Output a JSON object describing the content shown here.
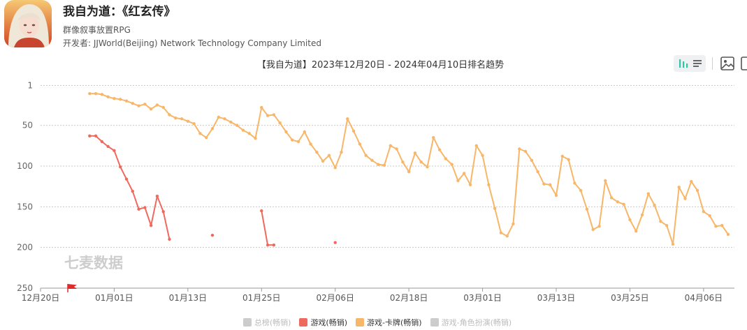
{
  "header": {
    "title": "我自为道：《红玄传》",
    "subtitle": "群像叙事放置RPG",
    "developer": "开发者: JJWorld(Beijing) Network Technology Company Limited"
  },
  "toolbar": {
    "icons": [
      "bar-chart-icon",
      "list-icon",
      "image-icon",
      "copy-icon"
    ]
  },
  "watermark": "七麦数据",
  "chart_data": {
    "type": "line",
    "title": "【我自为道】2023年12月20日 - 2024年04月10日排名趋势",
    "y_axis": {
      "inverted": true,
      "range": [
        1,
        250
      ],
      "ticks": [
        "1",
        "50",
        "100",
        "150",
        "200",
        "250"
      ]
    },
    "x_axis": {
      "range": [
        "2023-12-20",
        "2024-04-10"
      ],
      "ticks": [
        "12月20日",
        "01月01日",
        "01月13日",
        "01月25日",
        "02月06日",
        "02月18日",
        "03月01日",
        "03月13日",
        "03月25日",
        "04月06日"
      ]
    },
    "grid": true,
    "legend": "bottom-center",
    "legend_items": [
      {
        "name": "总榜(畅销)",
        "color": "#cccccc",
        "active": false
      },
      {
        "name": "游戏(畅销)",
        "color": "#ee6a5f",
        "active": true
      },
      {
        "name": "游戏-卡牌(畅销)",
        "color": "#f8b668",
        "active": true
      },
      {
        "name": "游戏-角色扮演(畅销)",
        "color": "#cccccc",
        "active": false
      }
    ],
    "series": [
      {
        "name": "游戏-卡牌(畅销)",
        "color": "#f8b668",
        "x": [
          "2023-12-28",
          "2023-12-29",
          "2023-12-30",
          "2023-12-31",
          "2024-01-01",
          "2024-01-02",
          "2024-01-03",
          "2024-01-04",
          "2024-01-05",
          "2024-01-06",
          "2024-01-07",
          "2024-01-08",
          "2024-01-09",
          "2024-01-10",
          "2024-01-11",
          "2024-01-12",
          "2024-01-13",
          "2024-01-14",
          "2024-01-15",
          "2024-01-16",
          "2024-01-17",
          "2024-01-18",
          "2024-01-19",
          "2024-01-20",
          "2024-01-21",
          "2024-01-22",
          "2024-01-23",
          "2024-01-24",
          "2024-01-25",
          "2024-01-26",
          "2024-01-27",
          "2024-01-28",
          "2024-01-29",
          "2024-01-30",
          "2024-01-31",
          "2024-02-01",
          "2024-02-02",
          "2024-02-03",
          "2024-02-04",
          "2024-02-05",
          "2024-02-06",
          "2024-02-07",
          "2024-02-08",
          "2024-02-09",
          "2024-02-10",
          "2024-02-11",
          "2024-02-12",
          "2024-02-13",
          "2024-02-14",
          "2024-02-15",
          "2024-02-16",
          "2024-02-17",
          "2024-02-18",
          "2024-02-19",
          "2024-02-20",
          "2024-02-21",
          "2024-02-22",
          "2024-02-23",
          "2024-02-24",
          "2024-02-25",
          "2024-02-26",
          "2024-02-27",
          "2024-02-28",
          "2024-02-29",
          "2024-03-01",
          "2024-03-02",
          "2024-03-03",
          "2024-03-04",
          "2024-03-05",
          "2024-03-06",
          "2024-03-07",
          "2024-03-08",
          "2024-03-09",
          "2024-03-10",
          "2024-03-11",
          "2024-03-12",
          "2024-03-13",
          "2024-03-14",
          "2024-03-15",
          "2024-03-16",
          "2024-03-17",
          "2024-03-18",
          "2024-03-19",
          "2024-03-20",
          "2024-03-21",
          "2024-03-22",
          "2024-03-23",
          "2024-03-24",
          "2024-03-25",
          "2024-03-26",
          "2024-03-27",
          "2024-03-28",
          "2024-03-29",
          "2024-03-30",
          "2024-03-31",
          "2024-04-01",
          "2024-04-02",
          "2024-04-03",
          "2024-04-04",
          "2024-04-05",
          "2024-04-06",
          "2024-04-07",
          "2024-04-08",
          "2024-04-09",
          "2024-04-10"
        ],
        "values": [
          11,
          11,
          12,
          15,
          17,
          18,
          20,
          23,
          26,
          24,
          30,
          25,
          28,
          37,
          41,
          42,
          45,
          48,
          60,
          65,
          54,
          40,
          42,
          46,
          50,
          56,
          60,
          66,
          28,
          38,
          37,
          47,
          58,
          68,
          70,
          58,
          73,
          83,
          94,
          87,
          102,
          83,
          42,
          57,
          73,
          87,
          93,
          98,
          99,
          75,
          79,
          95,
          107,
          84,
          95,
          101,
          65,
          80,
          91,
          98,
          118,
          109,
          123,
          75,
          87,
          123,
          152,
          182,
          186,
          171,
          79,
          82,
          93,
          107,
          122,
          123,
          136,
          88,
          92,
          121,
          130,
          153,
          178,
          174,
          118,
          139,
          144,
          147,
          166,
          180,
          160,
          134,
          148,
          168,
          173,
          196,
          126,
          140,
          119,
          130,
          156,
          161,
          174,
          173,
          184
        ]
      },
      {
        "name": "游戏(畅销)",
        "color": "#ee6a5f",
        "x": [
          "2023-12-28",
          "2023-12-29",
          "2023-12-30",
          "2023-12-31",
          "2024-01-01",
          "2024-01-02",
          "2024-01-03",
          "2024-01-04",
          "2024-01-05",
          "2024-01-06",
          "2024-01-07",
          "2024-01-08",
          "2024-01-09",
          "2024-01-10",
          "2024-01-11",
          "2024-01-17",
          "2024-01-25",
          "2024-01-26",
          "2024-01-27",
          "2024-02-06"
        ],
        "values": [
          63,
          63,
          70,
          76,
          81,
          101,
          116,
          131,
          153,
          151,
          173,
          137,
          156,
          190,
          null,
          185,
          155,
          197,
          197,
          194
        ]
      }
    ]
  }
}
